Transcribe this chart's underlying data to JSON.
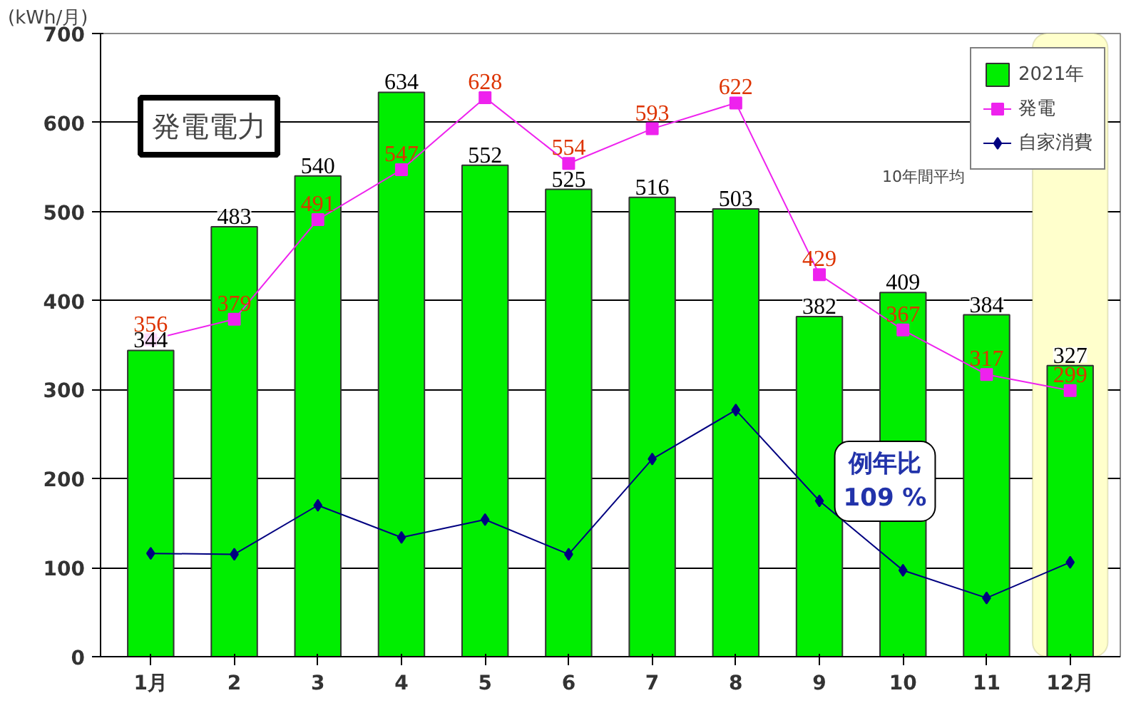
{
  "chart_data": {
    "type": "bar",
    "title": "発電電力",
    "ylabel": "(kWh/月)",
    "legend_title": "10年間平均",
    "categories": [
      "1月",
      "2",
      "3",
      "4",
      "5",
      "6",
      "7",
      "8",
      "9",
      "10",
      "11",
      "12月"
    ],
    "series": [
      {
        "name": "2021年",
        "color": "#00ee00",
        "values": [
          344,
          483,
          540,
          634,
          552,
          525,
          516,
          503,
          382,
          409,
          384,
          327
        ],
        "data_labels": true
      },
      {
        "name": "発電",
        "type": "line",
        "color": "#ee22ee",
        "marker": "square",
        "values": [
          356,
          379,
          491,
          547,
          628,
          554,
          593,
          622,
          429,
          367,
          317,
          299
        ],
        "data_labels": true
      },
      {
        "name": "自家消費",
        "type": "line",
        "color": "#000080",
        "marker": "diamond",
        "values": [
          116,
          115,
          170,
          134,
          154,
          115,
          222,
          277,
          175,
          97,
          66,
          106
        ]
      }
    ],
    "ylim": [
      0,
      700
    ],
    "yticks": [
      0,
      100,
      200,
      300,
      400,
      500,
      600,
      700
    ],
    "grid": "y",
    "legend": "top right",
    "bands": [
      {
        "axis": "x",
        "from": "12月",
        "to": "12月",
        "color": "#ffffcc"
      }
    ],
    "annotations": [
      "例年比\n109 %"
    ]
  }
}
